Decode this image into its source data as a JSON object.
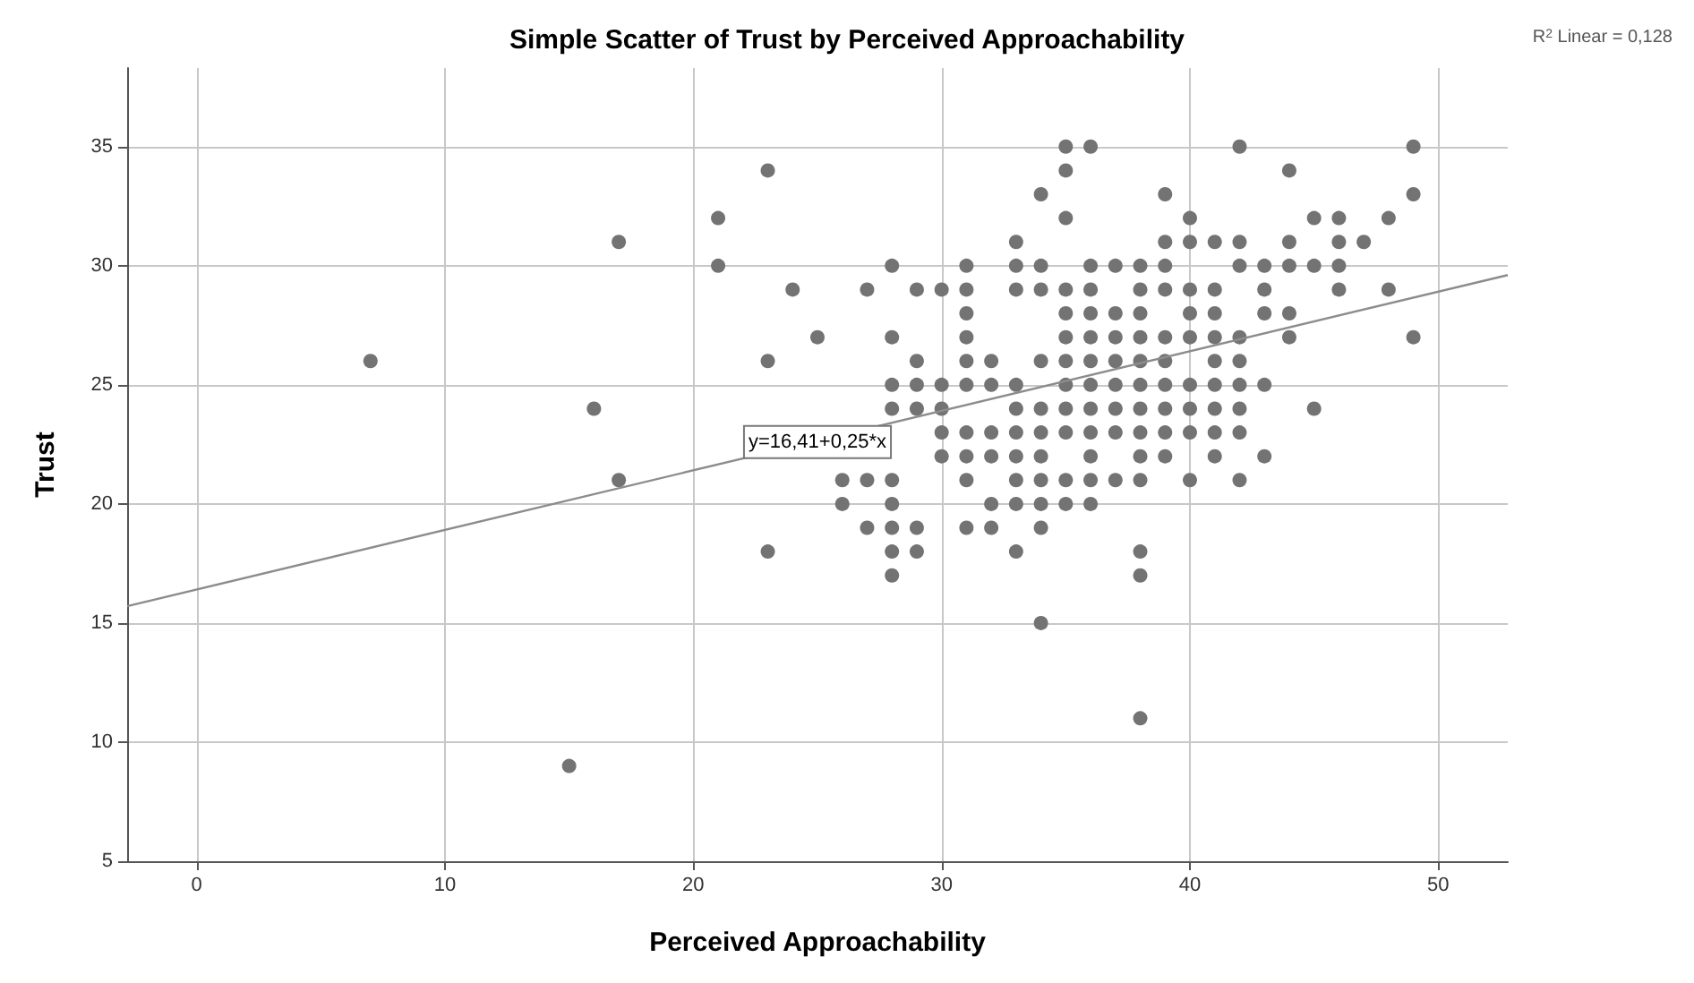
{
  "chart_data": {
    "type": "scatter",
    "title": "Simple Scatter of Trust by Perceived Approachability",
    "xlabel": "Perceived Approachability",
    "ylabel": "Trust",
    "xlim": [
      -2.8,
      52.8
    ],
    "ylim": [
      5,
      38.3
    ],
    "xticks": [
      0,
      10,
      20,
      30,
      40,
      50
    ],
    "yticks": [
      5,
      10,
      15,
      20,
      25,
      30,
      35
    ],
    "grid": true,
    "marker": "circle",
    "annotations": [
      {
        "text": "y=16,41+0,25*x",
        "x": 25,
        "y": 22.6
      },
      "R$^{2}$ Linear = 0,128"
    ],
    "series": [
      {
        "color": "#737373",
        "x": [
          7,
          15,
          16,
          17,
          17,
          21,
          21,
          23,
          23,
          23,
          24,
          25,
          26,
          26,
          27,
          27,
          27,
          28,
          28,
          28,
          28,
          28,
          28,
          28,
          28,
          28,
          29,
          29,
          29,
          29,
          29,
          29,
          30,
          30,
          30,
          30,
          30,
          31,
          31,
          31,
          31,
          31,
          31,
          31,
          31,
          31,
          31,
          32,
          32,
          32,
          32,
          32,
          32,
          33,
          33,
          33,
          33,
          33,
          33,
          33,
          33,
          33,
          33,
          34,
          34,
          34,
          34,
          34,
          34,
          34,
          34,
          34,
          34,
          34,
          35,
          35,
          35,
          35,
          35,
          35,
          35,
          35,
          35,
          35,
          35,
          35,
          36,
          36,
          36,
          36,
          36,
          36,
          36,
          36,
          36,
          36,
          36,
          36,
          37,
          37,
          37,
          37,
          37,
          37,
          37,
          37,
          38,
          38,
          38,
          38,
          38,
          38,
          38,
          38,
          38,
          38,
          38,
          38,
          38,
          39,
          39,
          39,
          39,
          39,
          39,
          39,
          39,
          39,
          39,
          40,
          40,
          40,
          40,
          40,
          40,
          40,
          40,
          40,
          41,
          41,
          41,
          41,
          41,
          41,
          41,
          41,
          41,
          42,
          42,
          42,
          42,
          42,
          42,
          42,
          42,
          42,
          43,
          43,
          43,
          43,
          43,
          44,
          44,
          44,
          44,
          44,
          45,
          45,
          45,
          46,
          46,
          46,
          46,
          47,
          48,
          48,
          49,
          49,
          49
        ],
        "values": [
          26,
          9,
          24,
          31,
          21,
          32,
          30,
          34,
          26,
          18,
          29,
          27,
          21,
          20,
          29,
          21,
          19,
          30,
          27,
          25,
          24,
          21,
          20,
          19,
          18,
          17,
          29,
          26,
          25,
          24,
          19,
          18,
          29,
          25,
          24,
          23,
          22,
          30,
          29,
          28,
          27,
          26,
          25,
          23,
          22,
          21,
          19,
          26,
          25,
          23,
          22,
          20,
          19,
          31,
          30,
          29,
          25,
          24,
          23,
          22,
          21,
          20,
          18,
          33,
          30,
          29,
          26,
          24,
          23,
          22,
          21,
          20,
          19,
          15,
          35,
          34,
          32,
          29,
          28,
          27,
          26,
          25,
          24,
          23,
          21,
          20,
          35,
          30,
          29,
          28,
          27,
          26,
          25,
          24,
          23,
          22,
          21,
          20,
          30,
          28,
          27,
          26,
          25,
          24,
          23,
          21,
          30,
          29,
          28,
          27,
          26,
          25,
          24,
          23,
          22,
          21,
          18,
          17,
          11,
          33,
          31,
          30,
          29,
          27,
          26,
          25,
          24,
          23,
          22,
          32,
          31,
          29,
          28,
          27,
          25,
          24,
          23,
          21,
          31,
          29,
          28,
          27,
          26,
          25,
          24,
          23,
          22,
          35,
          31,
          30,
          27,
          26,
          25,
          24,
          23,
          21,
          30,
          29,
          28,
          25,
          22,
          34,
          31,
          30,
          28,
          27,
          32,
          30,
          24,
          32,
          31,
          30,
          29,
          31,
          32,
          29,
          35,
          33,
          27
        ]
      },
      {
        "type": "line",
        "marker": "none",
        "color": "#8c8c8c",
        "x": [
          -2.8,
          52.8
        ],
        "values": [
          15.71,
          29.61
        ]
      }
    ]
  }
}
